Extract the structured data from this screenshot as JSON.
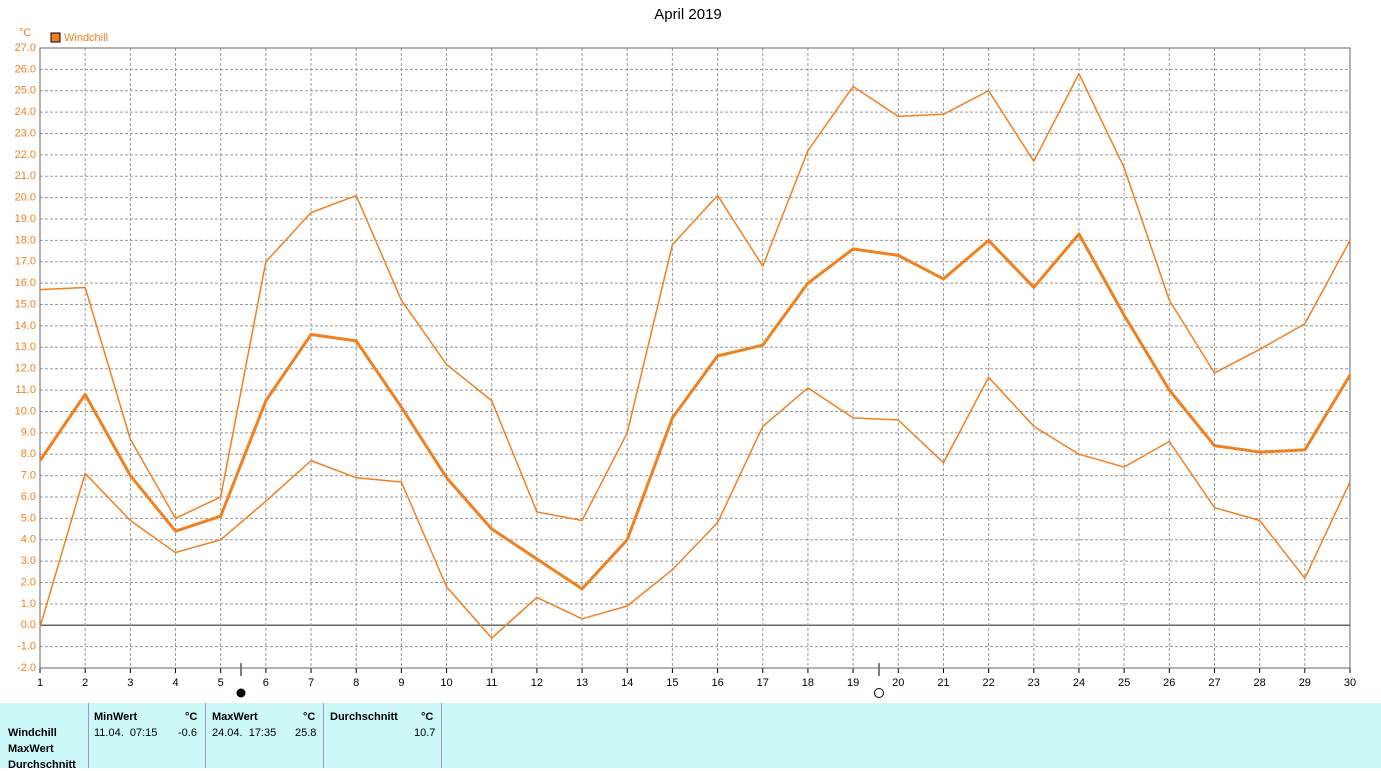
{
  "chart_data": {
    "type": "line",
    "title": "April 2019",
    "y_unit": "°C",
    "categories": [
      "1",
      "2",
      "3",
      "4",
      "5",
      "6",
      "7",
      "8",
      "9",
      "10",
      "11",
      "12",
      "13",
      "14",
      "15",
      "16",
      "17",
      "18",
      "19",
      "20",
      "21",
      "22",
      "23",
      "24",
      "25",
      "26",
      "27",
      "28",
      "29",
      "30"
    ],
    "series": [
      {
        "name": "Windchill",
        "color": "#f08020",
        "width": 3,
        "values": [
          7.7,
          10.8,
          7.0,
          4.4,
          5.1,
          10.5,
          13.6,
          13.3,
          10.2,
          6.9,
          4.5,
          3.1,
          1.7,
          4.0,
          9.7,
          12.6,
          13.1,
          16.0,
          17.6,
          17.3,
          16.2,
          18.0,
          15.8,
          18.3,
          14.5,
          11.0,
          8.4,
          8.1,
          8.2,
          11.7
        ]
      },
      {
        "color": "#f08020",
        "width": 1.5,
        "values": [
          15.7,
          15.8,
          8.7,
          5.0,
          6.0,
          17.0,
          19.3,
          20.1,
          15.2,
          12.2,
          10.5,
          5.3,
          4.9,
          9.0,
          17.8,
          20.1,
          16.8,
          22.2,
          25.2,
          23.8,
          23.9,
          25.0,
          21.7,
          25.8,
          21.4,
          15.2,
          11.8,
          12.9,
          14.1,
          18.0
        ]
      },
      {
        "color": "#f08020",
        "width": 1.5,
        "values": [
          -0.1,
          7.1,
          4.9,
          3.4,
          4.0,
          5.8,
          7.7,
          6.9,
          6.7,
          1.8,
          -0.6,
          1.3,
          0.3,
          0.9,
          2.6,
          4.8,
          9.3,
          11.1,
          9.7,
          9.6,
          7.6,
          11.6,
          9.3,
          8.0,
          7.4,
          8.6,
          5.5,
          4.9,
          2.2,
          6.7
        ]
      }
    ],
    "ylim": [
      -2,
      27
    ],
    "yticks": [
      {
        "value": -2,
        "label": "-2.0"
      },
      {
        "value": -1,
        "label": "-1.0"
      },
      {
        "value": 0,
        "label": "0.0"
      },
      {
        "value": 1,
        "label": "1.0"
      },
      {
        "value": 2,
        "label": "2.0"
      },
      {
        "value": 3,
        "label": "3.0"
      },
      {
        "value": 4,
        "label": "4.0"
      },
      {
        "value": 5,
        "label": "5.0"
      },
      {
        "value": 6,
        "label": "6.0"
      },
      {
        "value": 7,
        "label": "7.0"
      },
      {
        "value": 8,
        "label": "8.0"
      },
      {
        "value": 9,
        "label": "9.0"
      },
      {
        "value": 10,
        "label": "10.0"
      },
      {
        "value": 11,
        "label": "11.0"
      },
      {
        "value": 12,
        "label": "12.0"
      },
      {
        "value": 13,
        "label": "13.0"
      },
      {
        "value": 14,
        "label": "14.0"
      },
      {
        "value": 15,
        "label": "15.0"
      },
      {
        "value": 16,
        "label": "16.0"
      },
      {
        "value": 17,
        "label": "17.0"
      },
      {
        "value": 18,
        "label": "18.0"
      },
      {
        "value": 19,
        "label": "19.0"
      },
      {
        "value": 20,
        "label": "20.0"
      },
      {
        "value": 21,
        "label": "21.0"
      },
      {
        "value": 22,
        "label": "22.0"
      },
      {
        "value": 23,
        "label": "23.0"
      },
      {
        "value": 24,
        "label": "24.0"
      },
      {
        "value": 25,
        "label": "25.0"
      },
      {
        "value": 26,
        "label": "26.0"
      },
      {
        "value": 27,
        "label": "27.0"
      }
    ],
    "grid": true
  },
  "table": {
    "row_labels": [
      "Windchill",
      "MaxWert",
      "Durchschnitt"
    ],
    "columns": [
      {
        "header": "MinWert",
        "unit": "°C",
        "date": "11.04.  07:15",
        "value": "-0.6"
      },
      {
        "header": "MaxWert",
        "unit": "°C",
        "date": "24.04.  17:35",
        "value": "25.8"
      },
      {
        "header": "Durchschnitt",
        "unit": "°C",
        "value": "10.7"
      }
    ]
  }
}
